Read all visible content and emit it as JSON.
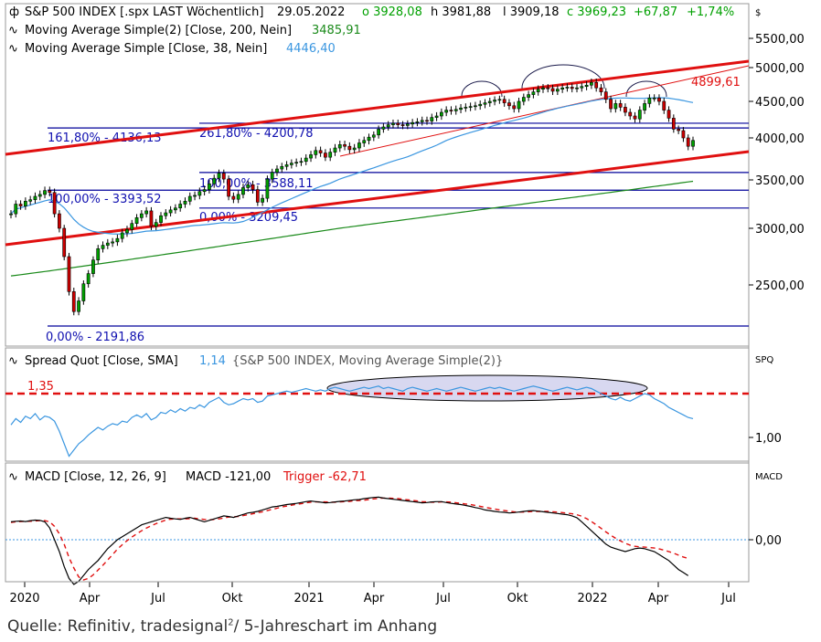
{
  "source": {
    "prefix": "Quelle: Refinitiv, tradesignal",
    "sup": "2",
    "suffix": "/ 5-Jahreschart im Anhang"
  },
  "colors": {
    "up": "#00a000",
    "down": "#cc0000",
    "ma200": "#1a8a1a",
    "ma38": "#3a96e0",
    "trend": "#e01010",
    "level": "#00009a",
    "fibText": "#1010b0",
    "macd": "#000000",
    "trigger": "#e01010",
    "spread": "#3a96e0",
    "ellipseFill": "#d8d8f0"
  },
  "chart_data": [
    {
      "type": "candlestick",
      "title": "S&P 500 INDEX [.spx LAST Wöchentlich]",
      "header": {
        "date": "29.05.2022",
        "open": "o 3928,08",
        "high": "h 3981,88",
        "low": "l 3909,18",
        "close": "c 3969,23",
        "change": "+67,87",
        "change_pct": "+1,74%",
        "currency": "$"
      },
      "legend": [
        {
          "text": "Moving Average Simple(2)  [Close, 200, Nein]",
          "value": "3485,91",
          "color": "#1a8a1a"
        },
        {
          "text": "Moving Average Simple  [Close, 38, Nein]",
          "value": "4446,40",
          "color": "#3a96e0"
        }
      ],
      "x_ticks": [
        "2020",
        "Apr",
        "Jul",
        "Okt",
        "2021",
        "Apr",
        "Jul",
        "Okt",
        "2022",
        "Apr",
        "Jul"
      ],
      "y_ticks": [
        "5500,00",
        "5000,00",
        "4500,00",
        "4000,00",
        "3500,00",
        "3000,00",
        "2500,00"
      ],
      "ylim": [
        2100,
        5900
      ],
      "series": [
        {
          "name": "S&P 500 INDEX",
          "close": [
            3150,
            3250,
            3230,
            3280,
            3295,
            3330,
            3350,
            3390,
            3370,
            3150,
            3000,
            2750,
            2450,
            2300,
            2380,
            2510,
            2600,
            2720,
            2820,
            2850,
            2870,
            2880,
            2910,
            2960,
            2990,
            3050,
            3110,
            3150,
            3180,
            3020,
            3060,
            3130,
            3160,
            3190,
            3210,
            3250,
            3280,
            3330,
            3340,
            3380,
            3400,
            3460,
            3520,
            3580,
            3510,
            3330,
            3300,
            3350,
            3420,
            3450,
            3400,
            3270,
            3310,
            3510,
            3590,
            3630,
            3660,
            3680,
            3700,
            3710,
            3720,
            3760,
            3800,
            3850,
            3820,
            3770,
            3830,
            3880,
            3920,
            3900,
            3860,
            3880,
            3940,
            3970,
            4010,
            4040,
            4120,
            4150,
            4180,
            4200,
            4180,
            4170,
            4190,
            4210,
            4220,
            4240,
            4230,
            4280,
            4300,
            4350,
            4380,
            4370,
            4390,
            4410,
            4420,
            4430,
            4440,
            4460,
            4480,
            4500,
            4520,
            4530,
            4480,
            4440,
            4400,
            4500,
            4560,
            4600,
            4640,
            4680,
            4700,
            4690,
            4650,
            4680,
            4700,
            4710,
            4690,
            4700,
            4720,
            4740,
            4780,
            4700,
            4640,
            4530,
            4400,
            4470,
            4420,
            4350,
            4300,
            4260,
            4380,
            4470,
            4550,
            4550,
            4500,
            4380,
            4270,
            4120,
            4100,
            4000,
            3900,
            3970
          ]
        }
      ],
      "levels": [
        {
          "label": "161,80% - 4136,13",
          "value": 4136.13
        },
        {
          "label": "261,80% - 4200,78",
          "value": 4200.78
        },
        {
          "label": "100,00% - 3588,11",
          "value": 3588.11
        },
        {
          "label": "100,00% - 3393,52",
          "value": 3393.52
        },
        {
          "label": "0,00% - 3209,45",
          "value": 3209.45
        },
        {
          "label": "0,00% - 2191,86",
          "value": 2191.86
        }
      ],
      "annotations": [
        {
          "text": "4899,61",
          "value": 4899.61
        }
      ]
    },
    {
      "type": "line",
      "title": "Spread Quot  [Close, SMA]",
      "value": "1,14",
      "subtitle": "{S&P 500 INDEX, Moving Average Simple(2)}",
      "label": "SPQ",
      "y_ticks": [
        "1,00"
      ],
      "threshold": {
        "label": "1,35",
        "value": 1.35
      },
      "series": [
        {
          "name": "Spread Quot",
          "values": [
            1.1,
            1.15,
            1.12,
            1.17,
            1.15,
            1.19,
            1.14,
            1.17,
            1.16,
            1.13,
            1.05,
            0.95,
            0.85,
            0.9,
            0.95,
            0.98,
            1.02,
            1.05,
            1.08,
            1.06,
            1.09,
            1.11,
            1.1,
            1.13,
            1.12,
            1.16,
            1.18,
            1.16,
            1.19,
            1.14,
            1.16,
            1.2,
            1.19,
            1.22,
            1.2,
            1.23,
            1.21,
            1.24,
            1.23,
            1.26,
            1.24,
            1.28,
            1.3,
            1.32,
            1.28,
            1.26,
            1.27,
            1.29,
            1.31,
            1.3,
            1.31,
            1.28,
            1.29,
            1.33,
            1.34,
            1.35,
            1.36,
            1.37,
            1.36,
            1.37,
            1.38,
            1.39,
            1.38,
            1.37,
            1.38,
            1.37,
            1.39,
            1.4,
            1.39,
            1.38,
            1.37,
            1.38,
            1.39,
            1.4,
            1.39,
            1.4,
            1.41,
            1.39,
            1.4,
            1.39,
            1.38,
            1.37,
            1.39,
            1.4,
            1.39,
            1.38,
            1.37,
            1.38,
            1.39,
            1.38,
            1.37,
            1.38,
            1.39,
            1.4,
            1.39,
            1.38,
            1.37,
            1.38,
            1.39,
            1.4,
            1.39,
            1.4,
            1.39,
            1.38,
            1.37,
            1.38,
            1.39,
            1.4,
            1.41,
            1.4,
            1.39,
            1.38,
            1.37,
            1.38,
            1.39,
            1.4,
            1.39,
            1.38,
            1.39,
            1.4,
            1.39,
            1.37,
            1.35,
            1.33,
            1.31,
            1.3,
            1.32,
            1.3,
            1.29,
            1.31,
            1.33,
            1.35,
            1.34,
            1.31,
            1.29,
            1.27,
            1.24,
            1.22,
            1.2,
            1.18,
            1.16,
            1.15
          ]
        }
      ]
    },
    {
      "type": "line",
      "title": "MACD  [Close, 12, 26, 9]",
      "value_label": "MACD -121,00",
      "trigger_label": "Trigger -62,71",
      "label": "MACD",
      "y_ticks": [
        "0,00"
      ],
      "series": [
        {
          "name": "MACD",
          "values": [
            60,
            62,
            63,
            61,
            64,
            66,
            65,
            60,
            40,
            0,
            -40,
            -90,
            -130,
            -150,
            -140,
            -120,
            -100,
            -85,
            -70,
            -50,
            -30,
            -15,
            0,
            10,
            20,
            30,
            40,
            50,
            55,
            60,
            65,
            70,
            75,
            72,
            70,
            68,
            72,
            75,
            70,
            65,
            60,
            65,
            70,
            75,
            80,
            78,
            75,
            80,
            85,
            90,
            92,
            95,
            100,
            105,
            110,
            112,
            115,
            118,
            120,
            122,
            125,
            128,
            130,
            128,
            126,
            124,
            125,
            127,
            129,
            130,
            132,
            134,
            135,
            138,
            140,
            142,
            143,
            140,
            138,
            136,
            134,
            132,
            130,
            128,
            126,
            124,
            125,
            127,
            128,
            128,
            125,
            122,
            120,
            118,
            115,
            112,
            108,
            105,
            100,
            98,
            95,
            93,
            92,
            90,
            91,
            93,
            95,
            97,
            98,
            96,
            94,
            92,
            90,
            88,
            86,
            84,
            80,
            74,
            60,
            45,
            30,
            15,
            0,
            -15,
            -25,
            -30,
            -35,
            -40,
            -35,
            -30,
            -28,
            -30,
            -35,
            -40,
            -50,
            -60,
            -70,
            -85,
            -100,
            -110,
            -121
          ]
        },
        {
          "name": "Trigger",
          "values": [
            58,
            60,
            61,
            62,
            62,
            63,
            64,
            64,
            60,
            45,
            20,
            -15,
            -60,
            -95,
            -125,
            -135,
            -130,
            -118,
            -102,
            -86,
            -68,
            -50,
            -32,
            -17,
            -3,
            9,
            20,
            30,
            39,
            47,
            54,
            60,
            66,
            69,
            70,
            70,
            70,
            71,
            72,
            70,
            68,
            67,
            68,
            70,
            73,
            76,
            77,
            78,
            81,
            84,
            87,
            91,
            94,
            98,
            102,
            106,
            110,
            113,
            116,
            119,
            121,
            124,
            126,
            127,
            127,
            127,
            126,
            126,
            127,
            128,
            129,
            131,
            132,
            133,
            135,
            137,
            139,
            140,
            140,
            139,
            138,
            136,
            134,
            132,
            130,
            128,
            127,
            126,
            126,
            127,
            127,
            126,
            124,
            122,
            120,
            118,
            115,
            112,
            109,
            106,
            103,
            100,
            98,
            96,
            94,
            93,
            93,
            94,
            95,
            95,
            95,
            95,
            94,
            93,
            91,
            89,
            87,
            84,
            79,
            71,
            61,
            50,
            38,
            26,
            15,
            5,
            -4,
            -12,
            -18,
            -22,
            -24,
            -25,
            -26,
            -28,
            -31,
            -35,
            -40,
            -45,
            -52,
            -58,
            -63
          ]
        }
      ]
    }
  ]
}
